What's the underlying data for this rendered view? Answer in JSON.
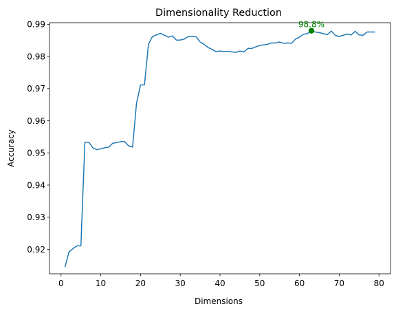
{
  "chart_data": {
    "type": "line",
    "title": "Dimensionality Reduction",
    "xlabel": "Dimensions",
    "ylabel": "Accuracy",
    "xlim": [
      -2.9,
      82.9
    ],
    "ylim": [
      0.9124,
      0.9905
    ],
    "xticks": [
      0,
      10,
      20,
      30,
      40,
      50,
      60,
      70,
      80
    ],
    "yticks": [
      0.92,
      0.93,
      0.94,
      0.95,
      0.96,
      0.97,
      0.98,
      0.99
    ],
    "xtick_labels": [
      "0",
      "10",
      "20",
      "30",
      "40",
      "50",
      "60",
      "70",
      "80"
    ],
    "ytick_labels": [
      "0.92",
      "0.93",
      "0.94",
      "0.95",
      "0.96",
      "0.97",
      "0.98",
      "0.99"
    ],
    "grid": false,
    "series": [
      {
        "color": "#1f77b4",
        "x": [
          1,
          2,
          3,
          4,
          5,
          6,
          7,
          8,
          9,
          10,
          11,
          12,
          13,
          14,
          15,
          16,
          17,
          18,
          19,
          20,
          21,
          22,
          23,
          24,
          25,
          26,
          27,
          28,
          29,
          30,
          31,
          32,
          33,
          34,
          35,
          36,
          37,
          38,
          39,
          40,
          41,
          42,
          43,
          44,
          45,
          46,
          47,
          48,
          49,
          50,
          51,
          52,
          53,
          54,
          55,
          56,
          57,
          58,
          59,
          60,
          61,
          62,
          63,
          64,
          65,
          66,
          67,
          68,
          69,
          70,
          71,
          72,
          73,
          74,
          75,
          76,
          77,
          78,
          79
        ],
        "y": [
          0.9145,
          0.9192,
          0.9202,
          0.9211,
          0.9211,
          0.9533,
          0.9533,
          0.9516,
          0.951,
          0.9513,
          0.9516,
          0.9518,
          0.953,
          0.9532,
          0.9535,
          0.9535,
          0.9522,
          0.9518,
          0.9655,
          0.9711,
          0.9712,
          0.9838,
          0.9862,
          0.9867,
          0.9872,
          0.9866,
          0.986,
          0.9864,
          0.9851,
          0.9851,
          0.9854,
          0.9862,
          0.9862,
          0.9861,
          0.9845,
          0.9838,
          0.9828,
          0.9822,
          0.9815,
          0.9817,
          0.9815,
          0.9816,
          0.9814,
          0.9813,
          0.9817,
          0.9814,
          0.9825,
          0.9825,
          0.983,
          0.9834,
          0.9836,
          0.9838,
          0.9842,
          0.9842,
          0.9845,
          0.9841,
          0.9842,
          0.9841,
          0.9854,
          0.986,
          0.9869,
          0.9871,
          0.988,
          0.9876,
          0.9874,
          0.9871,
          0.9868,
          0.9879,
          0.9866,
          0.9862,
          0.9866,
          0.987,
          0.9867,
          0.9878,
          0.9867,
          0.9866,
          0.9876,
          0.9876,
          0.9876
        ]
      }
    ],
    "annotation": {
      "x": 63,
      "y": 0.988,
      "text": "98.8%",
      "color": "#008000"
    }
  }
}
